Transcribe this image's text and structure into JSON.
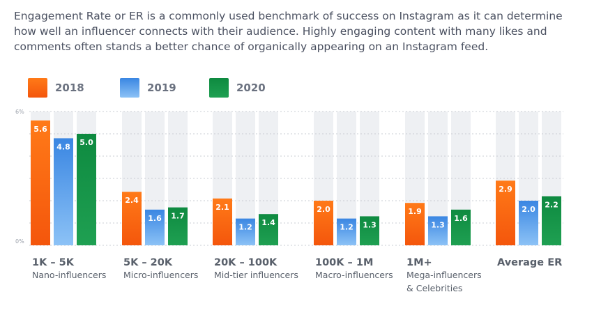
{
  "intro_text": "Engagement Rate or ER is a commonly used benchmark of success on Instagram as it can determine how well an influencer connects with their audience. Highly engaging content with many likes and comments often stands a better chance of organically appearing on an Instagram feed.",
  "legend": [
    {
      "label": "2018",
      "color": "#fa5d0b"
    },
    {
      "label": "2019",
      "color": "#3a8fe4"
    },
    {
      "label": "2020",
      "color": "#0f8a42"
    }
  ],
  "chart_data": {
    "type": "bar",
    "title": "",
    "xlabel": "",
    "ylabel": "",
    "ylim": [
      0,
      6
    ],
    "yticks": [
      {
        "value": 0,
        "label": "0%"
      },
      {
        "value": 6,
        "label": "6%"
      }
    ],
    "categories": [
      {
        "title": "1K – 5K",
        "subtitle": [
          "Nano-influencers"
        ]
      },
      {
        "title": "5K – 20K",
        "subtitle": [
          "Micro-influencers"
        ]
      },
      {
        "title": "20K – 100K",
        "subtitle": [
          "Mid-tier influencers"
        ]
      },
      {
        "title": "100K – 1M",
        "subtitle": [
          "Macro-influencers"
        ]
      },
      {
        "title": "1M+",
        "subtitle": [
          "Mega-influencers",
          "& Celebrities"
        ]
      },
      {
        "title": "Average ER",
        "subtitle": []
      }
    ],
    "series": [
      {
        "name": "2018",
        "values": [
          5.6,
          2.4,
          2.1,
          2.0,
          1.9,
          2.9
        ],
        "labels": [
          "5.6",
          "2.4",
          "2.1",
          "2.0",
          "1.9",
          "2.9"
        ]
      },
      {
        "name": "2019",
        "values": [
          4.8,
          1.6,
          1.2,
          1.2,
          1.3,
          2.0
        ],
        "labels": [
          "4.8",
          "1.6",
          "1.2",
          "1.2",
          "1.3",
          "2.0"
        ]
      },
      {
        "name": "2020",
        "values": [
          5.0,
          1.7,
          1.4,
          1.3,
          1.6,
          2.2
        ],
        "labels": [
          "5.0",
          "1.7",
          "1.4",
          "1.3",
          "1.6",
          "2.2"
        ]
      }
    ],
    "grid": true,
    "legend_position": "top-left"
  }
}
